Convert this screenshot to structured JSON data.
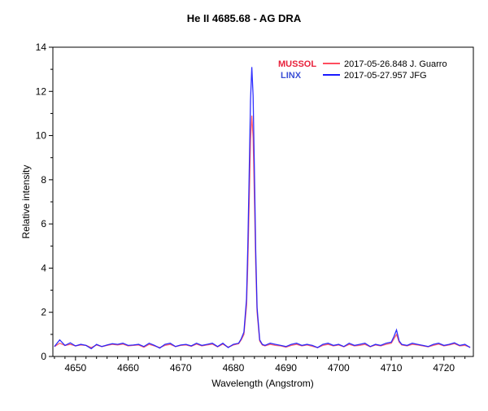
{
  "chart_data": {
    "type": "line",
    "title": "He II 4685.68 - AG DRA",
    "xlabel": "Wavelength (Angstrom)",
    "ylabel": "Relative intensity",
    "xlim": [
      4645.7,
      4725.6
    ],
    "ylim": [
      0,
      14
    ],
    "xticks": [
      4650,
      4660,
      4670,
      4680,
      4690,
      4700,
      4710,
      4720
    ],
    "yticks": [
      0,
      2,
      4,
      6,
      8,
      10,
      12,
      14
    ],
    "grid": false,
    "legend_position": "top-right",
    "x": [
      4646,
      4647,
      4648,
      4649,
      4650,
      4651,
      4652,
      4653,
      4654,
      4655,
      4656,
      4657,
      4658,
      4659,
      4660,
      4661,
      4662,
      4663,
      4664,
      4665,
      4666,
      4667,
      4668,
      4669,
      4670,
      4671,
      4672,
      4673,
      4674,
      4675,
      4676,
      4677,
      4678,
      4679,
      4680,
      4681,
      4681.5,
      4682,
      4682.5,
      4682.75,
      4683,
      4683.25,
      4683.5,
      4683.75,
      4684,
      4684.25,
      4684.5,
      4685,
      4685.5,
      4686,
      4687,
      4688,
      4689,
      4690,
      4691,
      4692,
      4693,
      4694,
      4695,
      4696,
      4697,
      4698,
      4699,
      4700,
      4701,
      4702,
      4703,
      4704,
      4705,
      4706,
      4707,
      4708,
      4709,
      4710,
      4710.5,
      4711,
      4711.5,
      4712,
      4713,
      4714,
      4715,
      4716,
      4717,
      4718,
      4719,
      4720,
      4721,
      4722,
      4723,
      4724,
      4725
    ],
    "series": [
      {
        "name": "2017-05-26.848  J. Guarro",
        "observatory": "MUSSOL",
        "color": "#ff4d5e",
        "label_color": "#e8203a",
        "values": [
          0.45,
          0.6,
          0.5,
          0.55,
          0.48,
          0.52,
          0.5,
          0.4,
          0.52,
          0.45,
          0.5,
          0.55,
          0.52,
          0.56,
          0.48,
          0.5,
          0.52,
          0.42,
          0.55,
          0.48,
          0.4,
          0.5,
          0.55,
          0.45,
          0.5,
          0.52,
          0.46,
          0.56,
          0.48,
          0.52,
          0.56,
          0.44,
          0.56,
          0.42,
          0.52,
          0.58,
          0.75,
          1.0,
          2.3,
          4.2,
          7.0,
          9.8,
          10.9,
          9.9,
          7.2,
          4.2,
          2.0,
          0.7,
          0.52,
          0.48,
          0.55,
          0.5,
          0.48,
          0.42,
          0.5,
          0.55,
          0.48,
          0.52,
          0.46,
          0.4,
          0.5,
          0.55,
          0.48,
          0.52,
          0.44,
          0.55,
          0.48,
          0.5,
          0.55,
          0.44,
          0.52,
          0.48,
          0.55,
          0.6,
          0.8,
          1.0,
          0.65,
          0.52,
          0.48,
          0.55,
          0.52,
          0.48,
          0.44,
          0.5,
          0.56,
          0.48,
          0.52,
          0.58,
          0.48,
          0.5,
          0.42
        ]
      },
      {
        "name": "2017-05-27.957  JFG",
        "observatory": "LINX",
        "color": "#1a1aff",
        "label_color": "#3b4fd6",
        "values": [
          0.45,
          0.75,
          0.5,
          0.62,
          0.48,
          0.55,
          0.5,
          0.35,
          0.55,
          0.45,
          0.52,
          0.58,
          0.55,
          0.6,
          0.5,
          0.52,
          0.55,
          0.45,
          0.6,
          0.5,
          0.38,
          0.55,
          0.6,
          0.45,
          0.52,
          0.55,
          0.48,
          0.6,
          0.5,
          0.55,
          0.6,
          0.45,
          0.6,
          0.4,
          0.55,
          0.6,
          0.8,
          1.1,
          2.6,
          5.0,
          8.3,
          11.6,
          13.1,
          11.8,
          8.4,
          4.8,
          2.2,
          0.75,
          0.55,
          0.5,
          0.6,
          0.55,
          0.5,
          0.45,
          0.55,
          0.6,
          0.5,
          0.55,
          0.5,
          0.4,
          0.55,
          0.6,
          0.5,
          0.55,
          0.45,
          0.6,
          0.5,
          0.55,
          0.6,
          0.45,
          0.55,
          0.5,
          0.6,
          0.65,
          0.9,
          1.2,
          0.7,
          0.55,
          0.5,
          0.6,
          0.55,
          0.5,
          0.45,
          0.55,
          0.6,
          0.5,
          0.55,
          0.62,
          0.5,
          0.55,
          0.4
        ]
      }
    ]
  }
}
